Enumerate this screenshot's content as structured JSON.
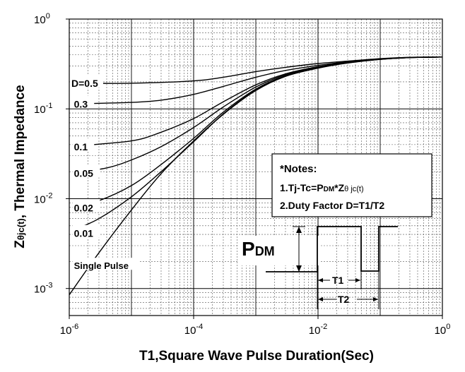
{
  "chart_data": {
    "type": "line",
    "xlabel": "T1,Square Wave Pulse Duration(Sec)",
    "ylabel_main": "Z",
    "ylabel_sub": "θjc(t)",
    "ylabel_rest": ", Thermal Impedance",
    "x_scale": "log",
    "y_scale": "log",
    "xlim": [
      1e-06,
      1
    ],
    "ylim": [
      0.0005,
      1
    ],
    "grid": true,
    "x_ticks": [
      {
        "value": 1e-06,
        "base": "10",
        "exp": "-6"
      },
      {
        "value": 0.0001,
        "base": "10",
        "exp": "-4"
      },
      {
        "value": 0.01,
        "base": "10",
        "exp": "-2"
      },
      {
        "value": 1,
        "base": "10",
        "exp": "0"
      }
    ],
    "y_ticks": [
      {
        "value": 1,
        "base": "10",
        "exp": "0"
      },
      {
        "value": 0.1,
        "base": "10",
        "exp": "-1"
      },
      {
        "value": 0.01,
        "base": "10",
        "exp": "-2"
      },
      {
        "value": 0.001,
        "base": "10",
        "exp": "-3"
      }
    ],
    "series": [
      {
        "name": "D=0.5",
        "label_x": 1e-06,
        "label_y": 0.192,
        "points": [
          [
            1.8e-06,
            0.193
          ],
          [
            1e-05,
            0.193
          ],
          [
            0.0001,
            0.205
          ],
          [
            0.0003,
            0.225
          ],
          [
            0.001,
            0.26
          ],
          [
            0.003,
            0.29
          ],
          [
            0.01,
            0.32
          ],
          [
            0.03,
            0.34
          ],
          [
            0.1,
            0.362
          ],
          [
            0.3,
            0.375
          ],
          [
            1,
            0.378
          ]
        ]
      },
      {
        "name": "0.3",
        "label_x": 1.1e-06,
        "label_y": 0.113,
        "points": [
          [
            1.5e-06,
            0.114
          ],
          [
            1e-05,
            0.118
          ],
          [
            3e-05,
            0.125
          ],
          [
            0.0001,
            0.145
          ],
          [
            0.0003,
            0.178
          ],
          [
            0.001,
            0.225
          ],
          [
            0.003,
            0.268
          ],
          [
            0.01,
            0.305
          ],
          [
            0.03,
            0.335
          ],
          [
            0.1,
            0.36
          ],
          [
            0.3,
            0.374
          ],
          [
            1,
            0.378
          ]
        ]
      },
      {
        "name": "0.1",
        "label_x": 1.1e-06,
        "label_y": 0.0378,
        "points": [
          [
            1.2e-06,
            0.0385
          ],
          [
            1e-05,
            0.044
          ],
          [
            3e-05,
            0.055
          ],
          [
            0.0001,
            0.078
          ],
          [
            0.0003,
            0.12
          ],
          [
            0.001,
            0.185
          ],
          [
            0.003,
            0.245
          ],
          [
            0.01,
            0.295
          ],
          [
            0.03,
            0.33
          ],
          [
            0.1,
            0.358
          ],
          [
            0.3,
            0.373
          ],
          [
            1,
            0.378
          ]
        ]
      },
      {
        "name": "0.05",
        "label_x": 1.1e-06,
        "label_y": 0.0192,
        "points": [
          [
            1.2e-06,
            0.0195
          ],
          [
            4e-06,
            0.022
          ],
          [
            1e-05,
            0.027
          ],
          [
            3e-05,
            0.038
          ],
          [
            0.0001,
            0.062
          ],
          [
            0.0003,
            0.105
          ],
          [
            0.001,
            0.175
          ],
          [
            0.003,
            0.24
          ],
          [
            0.01,
            0.29
          ],
          [
            0.03,
            0.328
          ],
          [
            0.1,
            0.357
          ],
          [
            0.3,
            0.372
          ],
          [
            1,
            0.378
          ]
        ]
      },
      {
        "name": "0.02",
        "label_x": 1.1e-06,
        "label_y": 0.0079,
        "points": [
          [
            1.2e-06,
            0.0082
          ],
          [
            3e-06,
            0.0095
          ],
          [
            1e-05,
            0.014
          ],
          [
            3e-05,
            0.024
          ],
          [
            0.0001,
            0.047
          ],
          [
            0.0003,
            0.092
          ],
          [
            0.001,
            0.166
          ],
          [
            0.003,
            0.234
          ],
          [
            0.01,
            0.287
          ],
          [
            0.03,
            0.326
          ],
          [
            0.1,
            0.356
          ],
          [
            0.3,
            0.372
          ],
          [
            1,
            0.378
          ]
        ]
      },
      {
        "name": "0.01",
        "label_x": 1.1e-06,
        "label_y": 0.0041,
        "points": [
          [
            1.2e-06,
            0.0045
          ],
          [
            3e-06,
            0.006
          ],
          [
            1e-05,
            0.0105
          ],
          [
            3e-05,
            0.02
          ],
          [
            0.0001,
            0.043
          ],
          [
            0.0003,
            0.088
          ],
          [
            0.001,
            0.162
          ],
          [
            0.003,
            0.231
          ],
          [
            0.01,
            0.285
          ],
          [
            0.03,
            0.325
          ],
          [
            0.1,
            0.356
          ],
          [
            0.3,
            0.372
          ],
          [
            1,
            0.378
          ]
        ]
      },
      {
        "name": "Single Pulse",
        "label_x": 1.1e-06,
        "label_y": 0.0018,
        "points": [
          [
            1e-06,
            0.00085
          ],
          [
            3e-06,
            0.0025
          ],
          [
            1e-05,
            0.0075
          ],
          [
            3e-05,
            0.019
          ],
          [
            0.0001,
            0.044
          ],
          [
            0.0003,
            0.087
          ],
          [
            0.001,
            0.16
          ],
          [
            0.003,
            0.23
          ],
          [
            0.01,
            0.284
          ],
          [
            0.03,
            0.324
          ],
          [
            0.1,
            0.355
          ],
          [
            0.3,
            0.372
          ],
          [
            1,
            0.378
          ]
        ]
      }
    ],
    "notes": {
      "title": "*Notes:",
      "line1_a": "1.Tj-Tc=P",
      "line1_sub": "DM",
      "line1_b": "*Z",
      "line1_c": "θ jc(t)",
      "line2": "2.Duty Factor D=T1/T2"
    },
    "pulse_diagram": {
      "p_label": "P",
      "p_sub": "DM",
      "t1_label": "T1",
      "t2_label": "T2"
    }
  }
}
